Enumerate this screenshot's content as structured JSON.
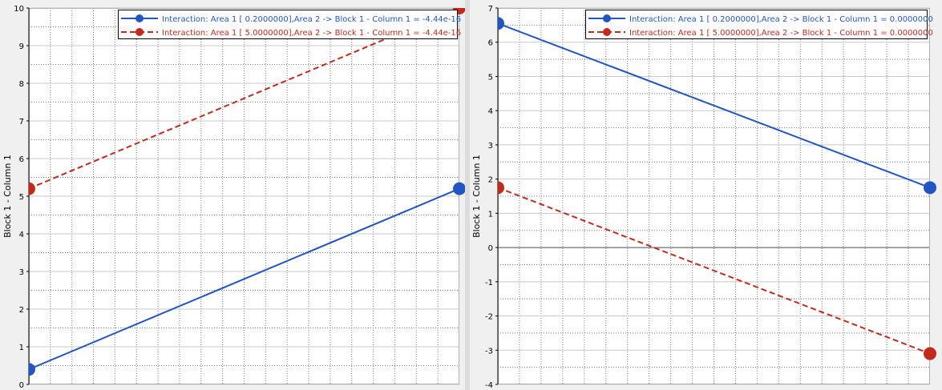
{
  "chart_data": [
    {
      "type": "line",
      "ylabel": "Block 1 - Column 1",
      "xlabel": "",
      "ylim": [
        0,
        10
      ],
      "yticks": [
        "0",
        "1",
        "2",
        "3",
        "4",
        "5",
        "6",
        "7",
        "8",
        "9",
        "10"
      ],
      "x": [
        0,
        1
      ],
      "grid": true,
      "legend_position": "top-right",
      "series": [
        {
          "name": "Interaction: Area 1 [ 0.2000000],Area 2 -> Block 1 - Column 1 = -4.44e-16",
          "color": "#2255c4",
          "dash": "solid",
          "values": [
            0.4,
            5.2
          ]
        },
        {
          "name": "Interaction: Area 1 [ 5.0000000],Area 2 -> Block 1 - Column 1 = -4.44e-16",
          "color": "#c42a1c",
          "dash": "dashed",
          "values": [
            5.2,
            10.0
          ]
        }
      ]
    },
    {
      "type": "line",
      "ylabel": "Block 1 - Column 1",
      "xlabel": "",
      "ylim": [
        -4,
        7
      ],
      "yticks": [
        "-4",
        "-3",
        "-2",
        "-1",
        "0",
        "1",
        "2",
        "3",
        "4",
        "5",
        "6",
        "7"
      ],
      "x": [
        0,
        1
      ],
      "grid": true,
      "legend_position": "top-right",
      "series": [
        {
          "name": "Interaction: Area 1 [ 0.2000000],Area 2 -> Block 1 - Column 1 =  0.0000000",
          "color": "#2255c4",
          "dash": "solid",
          "values": [
            6.55,
            1.75
          ]
        },
        {
          "name": "Interaction: Area 1 [ 5.0000000],Area 2 -> Block 1 - Column 1 =  0.0000000",
          "color": "#c42a1c",
          "dash": "dashed",
          "values": [
            1.75,
            -3.1
          ]
        }
      ]
    }
  ]
}
